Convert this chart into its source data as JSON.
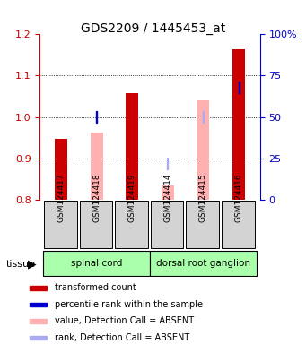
{
  "title": "GDS2209 / 1445453_at",
  "samples": [
    "GSM124417",
    "GSM124418",
    "GSM124419",
    "GSM124414",
    "GSM124415",
    "GSM124416"
  ],
  "tissue_groups": [
    {
      "label": "spinal cord",
      "samples": [
        0,
        1,
        2
      ]
    },
    {
      "label": "dorsal root ganglion",
      "samples": [
        3,
        4,
        5
      ]
    }
  ],
  "ylim": [
    0.8,
    1.2
  ],
  "yticks": [
    0.8,
    0.9,
    1.0,
    1.1,
    1.2
  ],
  "y2lim": [
    0,
    100
  ],
  "y2ticks": [
    0,
    25,
    50,
    75,
    100
  ],
  "y2ticklabels": [
    "0",
    "25",
    "50",
    "75",
    "100%"
  ],
  "red_bars": [
    0.948,
    null,
    1.058,
    null,
    null,
    1.163
  ],
  "pink_bars": [
    null,
    0.963,
    null,
    0.835,
    1.04,
    null
  ],
  "blue_squares": [
    null,
    50,
    null,
    null,
    null,
    68
  ],
  "light_blue_squares": [
    null,
    null,
    null,
    22,
    50,
    null
  ],
  "red_bar_color": "#cc0000",
  "pink_bar_color": "#ffb0b0",
  "blue_sq_color": "#0000cc",
  "light_blue_sq_color": "#aaaaee",
  "axis_color_left": "#cc0000",
  "axis_color_right": "#0000cc",
  "grid_color": "#000000",
  "bg_plot": "#ffffff",
  "bg_label": "#d3d3d3",
  "bg_tissue_spinal": "#90ee90",
  "bg_tissue_dorsal": "#90ee90",
  "legend_items": [
    {
      "color": "#cc0000",
      "label": "transformed count"
    },
    {
      "color": "#0000cc",
      "label": "percentile rank within the sample"
    },
    {
      "color": "#ffb0b0",
      "label": "value, Detection Call = ABSENT"
    },
    {
      "color": "#aaaaee",
      "label": "rank, Detection Call = ABSENT"
    }
  ]
}
